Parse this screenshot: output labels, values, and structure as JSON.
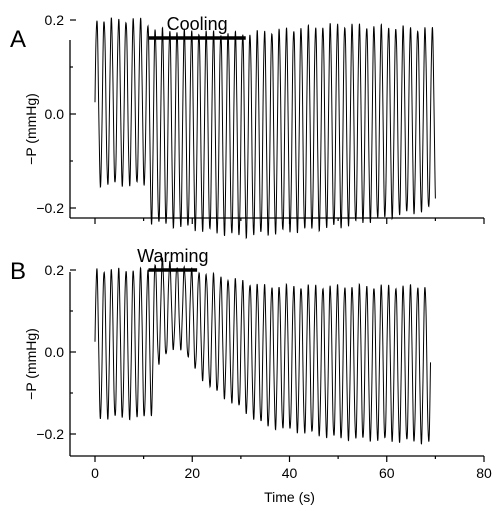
{
  "chart_data": [
    {
      "type": "line",
      "panel": "A",
      "ylabel": "−P (mmHg)",
      "xlim": [
        0,
        80
      ],
      "ylim": [
        -0.3,
        0.25
      ],
      "yticks": [
        {
          "value": 0.2,
          "label": "0.2"
        },
        {
          "value": 0.0,
          "label": "0.0"
        },
        {
          "value": -0.2,
          "label": "−0.2"
        }
      ],
      "xticks": [
        {
          "value": 0
        },
        {
          "value": 20
        },
        {
          "value": 40
        },
        {
          "value": 60
        },
        {
          "value": 80
        }
      ],
      "annotation": {
        "label": "Cooling",
        "x_start": 11,
        "x_end": 31
      },
      "series": [
        {
          "x_start": 0,
          "x_end": 70,
          "period": 1.5,
          "segments": [
            {
              "t": 0,
              "top": 0.2,
              "bottom": -0.15
            },
            {
              "t": 10.5,
              "top": 0.2,
              "bottom": -0.15
            },
            {
              "t": 11.5,
              "top": 0.18,
              "bottom": -0.23
            },
            {
              "t": 30,
              "top": 0.17,
              "bottom": -0.26
            },
            {
              "t": 50,
              "top": 0.19,
              "bottom": -0.24
            },
            {
              "t": 70,
              "top": 0.18,
              "bottom": -0.2
            }
          ]
        }
      ]
    },
    {
      "type": "line",
      "panel": "B",
      "xlabel": "Time (s)",
      "ylabel": "−P (mmHg)",
      "xlim": [
        0,
        80
      ],
      "ylim": [
        -0.3,
        0.25
      ],
      "yticks": [
        {
          "value": 0.2,
          "label": "0.2"
        },
        {
          "value": 0.0,
          "label": "0.0"
        },
        {
          "value": -0.2,
          "label": "−0.2"
        }
      ],
      "xticks": [
        {
          "value": 0,
          "label": "0"
        },
        {
          "value": 20,
          "label": "20"
        },
        {
          "value": 40,
          "label": "40"
        },
        {
          "value": 60,
          "label": "60"
        },
        {
          "value": 80,
          "label": "80"
        }
      ],
      "annotation": {
        "label": "Warming",
        "x_start": 11,
        "x_end": 21
      },
      "series": [
        {
          "x_start": 0,
          "x_end": 69,
          "period": 1.5,
          "segments": [
            {
              "t": 0,
              "top": 0.2,
              "bottom": -0.16
            },
            {
              "t": 11.5,
              "top": 0.2,
              "bottom": -0.16
            },
            {
              "t": 13,
              "top": 0.23,
              "bottom": -0.03
            },
            {
              "t": 17,
              "top": 0.21,
              "bottom": 0.02
            },
            {
              "t": 23,
              "top": 0.19,
              "bottom": -0.08
            },
            {
              "t": 35,
              "top": 0.16,
              "bottom": -0.18
            },
            {
              "t": 50,
              "top": 0.16,
              "bottom": -0.21
            },
            {
              "t": 69,
              "top": 0.16,
              "bottom": -0.22
            }
          ]
        }
      ]
    }
  ]
}
